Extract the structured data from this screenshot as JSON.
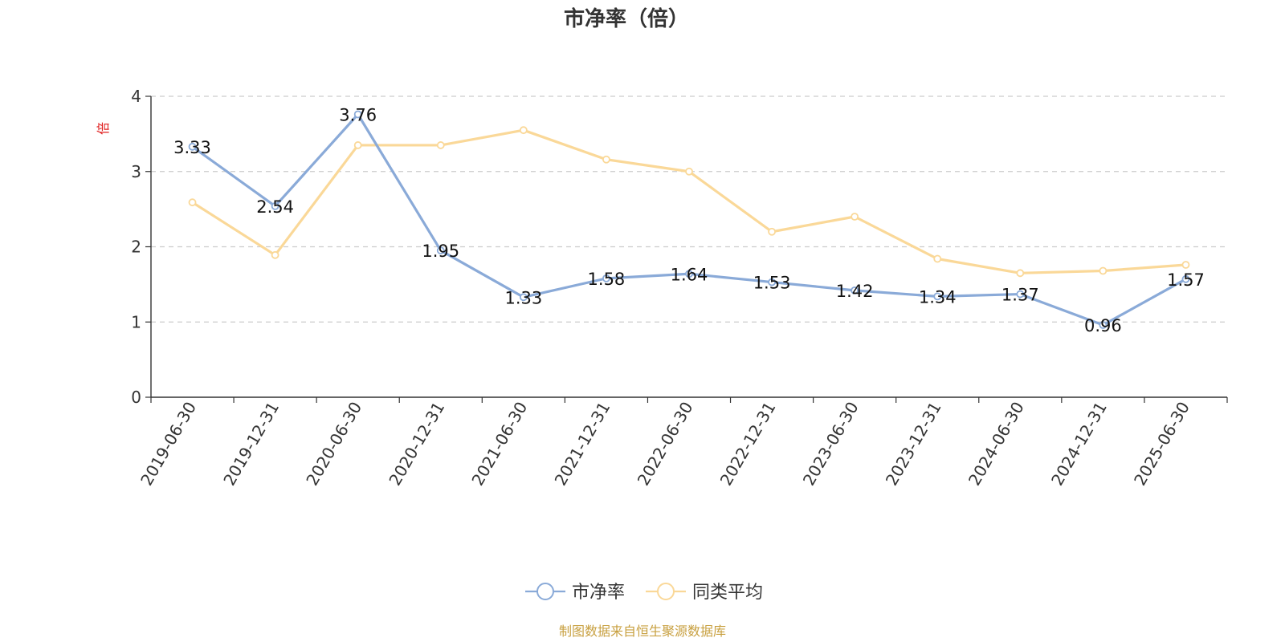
{
  "chart_data": {
    "type": "line",
    "title": "市净率（倍）",
    "ylabel": "倍",
    "ylim": [
      0,
      4
    ],
    "yticks": [
      "0",
      "1",
      "2",
      "3",
      "4"
    ],
    "grid": true,
    "legend_position": "bottom",
    "categories": [
      "2019-06-30",
      "2019-12-31",
      "2020-06-30",
      "2020-12-31",
      "2021-06-30",
      "2021-12-31",
      "2022-06-30",
      "2022-12-31",
      "2023-06-30",
      "2023-12-31",
      "2024-06-30",
      "2024-12-31",
      "2025-06-30"
    ],
    "series": [
      {
        "name": "市净率",
        "color": "#8aaad8",
        "values": [
          3.33,
          2.54,
          3.76,
          1.95,
          1.33,
          1.58,
          1.64,
          1.53,
          1.42,
          1.34,
          1.37,
          0.96,
          1.57
        ],
        "labels": [
          "3.33",
          "2.54",
          "3.76",
          "1.95",
          "1.33",
          "1.58",
          "1.64",
          "1.53",
          "1.42",
          "1.34",
          "1.37",
          "0.96",
          "1.57"
        ]
      },
      {
        "name": "同类平均",
        "color": "#fad898",
        "values": [
          2.59,
          1.89,
          3.35,
          3.35,
          3.55,
          3.16,
          3.0,
          2.2,
          2.4,
          1.84,
          1.65,
          1.68,
          1.76
        ]
      }
    ],
    "source": "制图数据来自恒生聚源数据库",
    "source_color": "#c8a040"
  }
}
